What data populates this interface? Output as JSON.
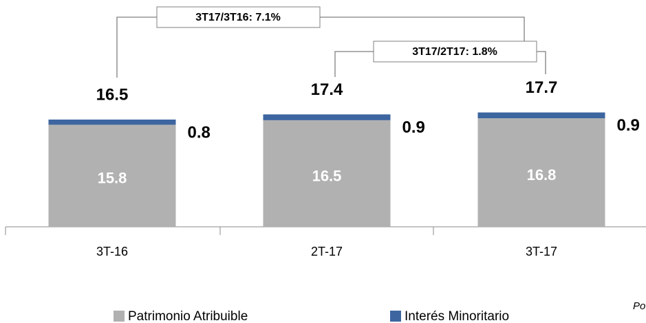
{
  "chart_data": {
    "type": "stacked_bar",
    "categories": [
      "3T-16",
      "2T-17",
      "3T-17"
    ],
    "series": [
      {
        "name": "Patrimonio Atribuible",
        "color": "#b1b1b1",
        "values": [
          15.8,
          16.5,
          16.8
        ]
      },
      {
        "name": "Interés Minoritario",
        "color": "#3d65a0",
        "values": [
          0.8,
          0.9,
          0.9
        ]
      }
    ],
    "totals": [
      16.5,
      17.4,
      17.7
    ],
    "annotations": [
      "3T17/3T16: 7.1%",
      "3T17/2T17: 1.8%"
    ],
    "note": "Po"
  }
}
